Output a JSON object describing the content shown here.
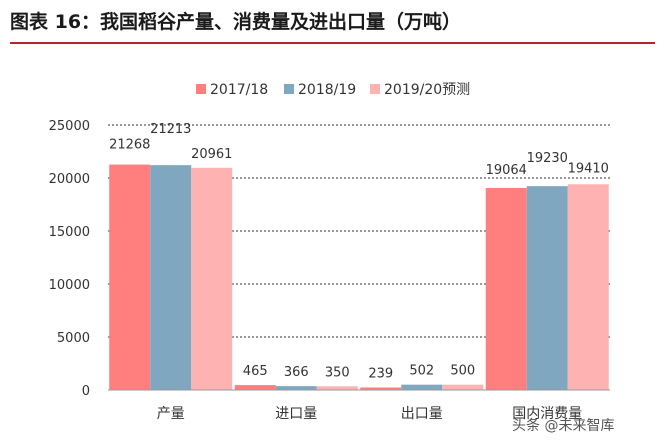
{
  "title": "图表 16：我国稻谷产量、消费量及进出口量（万吨）",
  "watermark": "头条 @未来智库",
  "colors": {
    "s2017": "#ff7f7f",
    "s2018": "#7fa7bf",
    "s2019": "#ffb2b2",
    "title_rule": "#b0282e"
  },
  "chart_data": {
    "type": "bar",
    "categories": [
      "产量",
      "进口量",
      "出口量",
      "国内消费量"
    ],
    "series": [
      {
        "name": "2017/18",
        "values": [
          21268,
          465,
          239,
          19064
        ]
      },
      {
        "name": "2018/19",
        "values": [
          21213,
          366,
          502,
          19230
        ]
      },
      {
        "name": "2019/20预测",
        "values": [
          20961,
          350,
          500,
          19410
        ]
      }
    ],
    "ylim": [
      0,
      25000
    ],
    "yticks": [
      0,
      5000,
      10000,
      15000,
      20000,
      25000
    ],
    "grid": true,
    "legend": "top-center"
  }
}
